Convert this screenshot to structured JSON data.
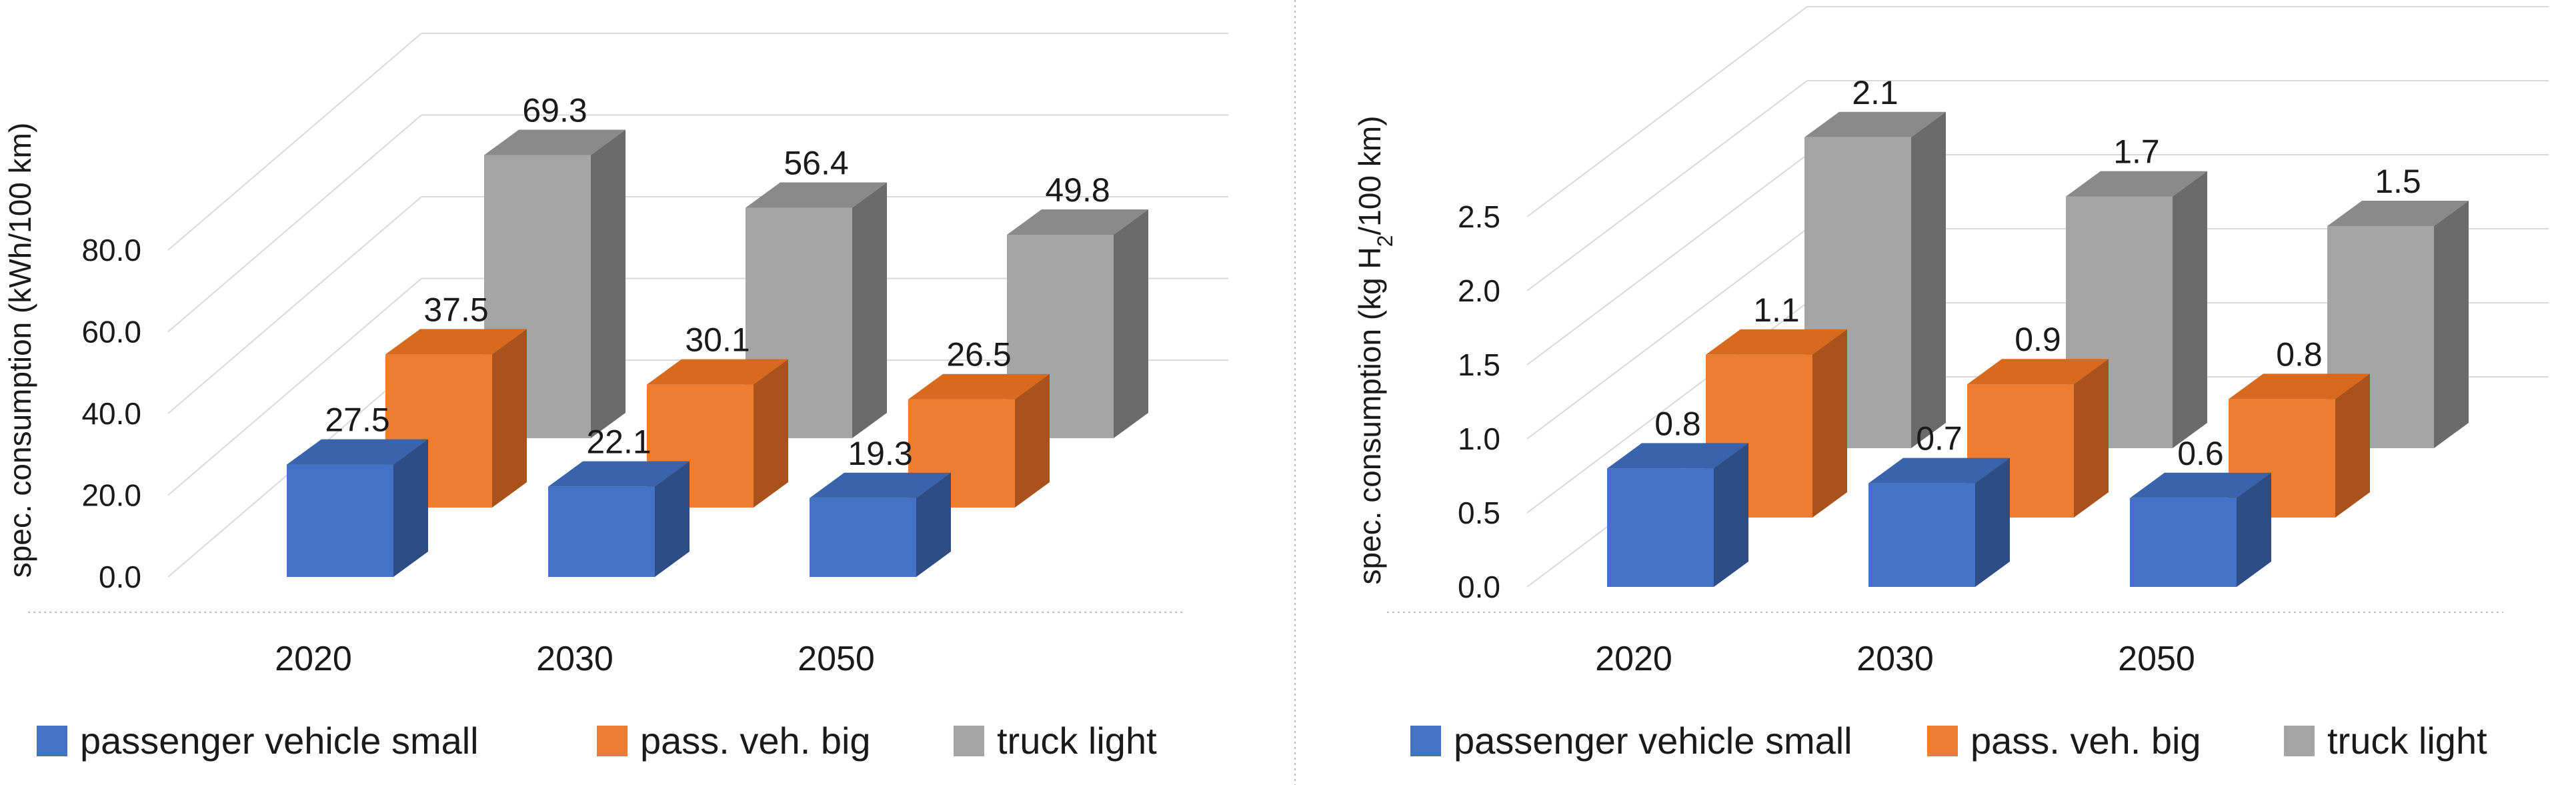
{
  "chart_data": [
    {
      "type": "bar",
      "style": "3d-clustered-depth",
      "title": "",
      "xlabel": "",
      "ylabel": "spec. consumption (kWh/100 km)",
      "categories": [
        "2020",
        "2030",
        "2050"
      ],
      "ylim": [
        0,
        80
      ],
      "yticks": [
        "0.0",
        "20.0",
        "40.0",
        "60.0",
        "80.0"
      ],
      "series": [
        {
          "name": "passenger vehicle small",
          "values": [
            27.5,
            22.1,
            19.3
          ],
          "labels": [
            "27.5",
            "22.1",
            "19.3"
          ]
        },
        {
          "name": "pass. veh. big",
          "values": [
            37.5,
            30.1,
            26.5
          ],
          "labels": [
            "37.5",
            "30.1",
            "26.5"
          ]
        },
        {
          "name": "truck light",
          "values": [
            69.3,
            56.4,
            49.8
          ],
          "labels": [
            "69.3",
            "56.4",
            "49.8"
          ]
        }
      ],
      "legend": "bottom",
      "grid": true
    },
    {
      "type": "bar",
      "style": "3d-clustered-depth",
      "title": "",
      "xlabel": "",
      "ylabel_parts": [
        "spec. consumption (kg H",
        "2",
        "/100 km)"
      ],
      "categories": [
        "2020",
        "2030",
        "2050"
      ],
      "ylim": [
        0,
        2.5
      ],
      "yticks": [
        "0.0",
        "0.5",
        "1.0",
        "1.5",
        "2.0",
        "2.5"
      ],
      "series": [
        {
          "name": "passenger vehicle small",
          "values": [
            0.8,
            0.7,
            0.6
          ],
          "labels": [
            "0.8",
            "0.7",
            "0.6"
          ]
        },
        {
          "name": "pass. veh. big",
          "values": [
            1.1,
            0.9,
            0.8
          ],
          "labels": [
            "1.1",
            "0.9",
            "0.8"
          ]
        },
        {
          "name": "truck light",
          "values": [
            2.1,
            1.7,
            1.5
          ],
          "labels": [
            "2.1",
            "1.7",
            "1.5"
          ]
        }
      ],
      "legend": "bottom",
      "grid": true
    }
  ],
  "colors": {
    "series": [
      {
        "front": "#4472c4",
        "top": "#3a63ad",
        "side": "#2e4d85"
      },
      {
        "front": "#ed7d31",
        "top": "#d86a20",
        "side": "#a9521c"
      },
      {
        "front": "#a5a5a5",
        "top": "#8a8a8a",
        "side": "#6b6b6b"
      }
    ],
    "grid": "#d9d9d9",
    "divider": "#bfbfbf"
  }
}
